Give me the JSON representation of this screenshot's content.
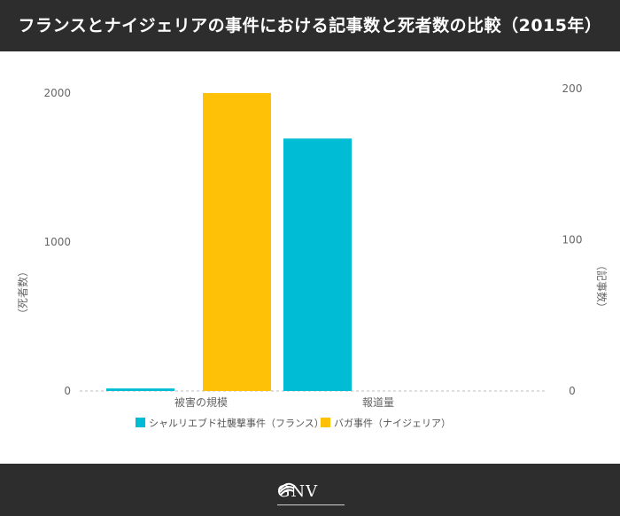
{
  "header": {
    "title": "フランスとナイジェリアの事件における記事数と死者数の比較（2015年）"
  },
  "chart_data": {
    "type": "bar",
    "categories": [
      "被害の規模",
      "報道量"
    ],
    "series": [
      {
        "name": "シャルリエブド社襲撃事件（フランス）",
        "color": "#00bcd4",
        "axis": "left",
        "values": [
          17,
          null
        ]
      },
      {
        "name": "バガ事件（ナイジェリア）",
        "color": "#ffc107",
        "axis": "left",
        "values": [
          2000,
          null
        ]
      },
      {
        "name": "シャルリエブド社襲撃事件（フランス）",
        "color": "#00bcd4",
        "axis": "right",
        "values": [
          null,
          167
        ]
      },
      {
        "name": "バガ事件（ナイジェリア）",
        "color": "#ffc107",
        "axis": "right",
        "values": [
          null,
          0
        ]
      }
    ],
    "y_left": {
      "label": "（死者数）",
      "ticks": [
        0,
        1000,
        2000
      ],
      "range": [
        0,
        2000
      ]
    },
    "y_right": {
      "label": "（記事数）",
      "ticks": [
        0,
        100,
        200
      ],
      "range": [
        0,
        200
      ]
    },
    "legend": [
      {
        "label": "シャルリエブド社襲撃事件（フランス）",
        "color": "#00bcd4"
      },
      {
        "label": "バガ事件（ナイジェリア）",
        "color": "#ffc107"
      }
    ],
    "legend_position": "bottom",
    "grid": false
  },
  "footer": {
    "logo_text": "GNV"
  }
}
